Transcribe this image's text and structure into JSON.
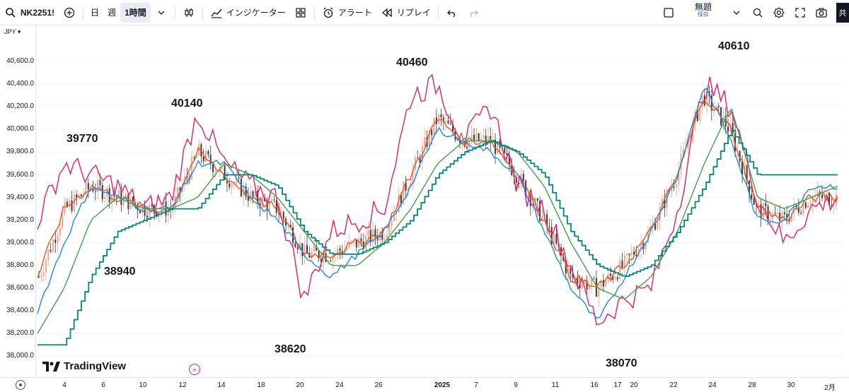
{
  "toolbar": {
    "symbol": "NK2251!",
    "interval_day": "日",
    "interval_week": "週",
    "interval_hour": "1時間",
    "indicators_label": "インジケーター",
    "alert_label": "アラート",
    "replay_label": "リプレイ",
    "layout_name": "無題",
    "layout_status": "保存",
    "corner_label": "共"
  },
  "currency": "JPY",
  "price_axis": [
    "40,600.0",
    "40,400.0",
    "40,200.0",
    "40,000.0",
    "39,800.0",
    "39,600.0",
    "39,400.0",
    "39,200.0",
    "39,000.0",
    "38,800.0",
    "38,600.0",
    "38,400.0",
    "38,200.0",
    "38,000.0"
  ],
  "time_axis": [
    "4",
    "6",
    "10",
    "12",
    "14",
    "18",
    "20",
    "24",
    "26",
    "2025",
    "7",
    "9",
    "11",
    "16",
    "17",
    "20",
    "22",
    "24",
    "28",
    "30",
    "2月"
  ],
  "annotations": [
    "40140",
    "39770",
    "38940",
    "38620",
    "40460",
    "38070",
    "40610"
  ],
  "watermark": "TradingView",
  "chart_data": {
    "type": "line",
    "xlabel": "",
    "ylabel": "",
    "ylim": [
      37950,
      40700
    ],
    "grid": true,
    "series": [
      {
        "color": "#e91e63",
        "values": [
          39200,
          39700,
          39600,
          39500,
          39300,
          39400,
          40150,
          39700,
          39500,
          39400,
          38500,
          39100,
          39200,
          39300,
          40300,
          40400,
          39900,
          40200,
          39500,
          39300,
          38800,
          38300,
          38500,
          38600,
          39300,
          40400,
          40200,
          39400,
          39000,
          39300,
          39400
        ]
      },
      {
        "color": "#f4511e",
        "values": [
          38700,
          39300,
          39500,
          39400,
          39300,
          39300,
          39800,
          39600,
          39400,
          39300,
          38900,
          38900,
          39000,
          39100,
          39600,
          40100,
          39900,
          39900,
          39600,
          39200,
          38700,
          38600,
          38800,
          39100,
          39600,
          40300,
          40000,
          39300,
          39200,
          39400,
          39400
        ]
      },
      {
        "color": "#1e88e5",
        "values": [
          38400,
          39000,
          39500,
          39400,
          39300,
          39300,
          39700,
          39700,
          39400,
          39200,
          38900,
          38700,
          38900,
          39100,
          39500,
          40000,
          39900,
          39800,
          39600,
          39100,
          38600,
          38300,
          38700,
          39100,
          39600,
          40400,
          39900,
          39200,
          39200,
          39500,
          39500
        ]
      },
      {
        "color": "#43a047",
        "values": [
          38200,
          38600,
          39200,
          39400,
          39300,
          39300,
          39400,
          39700,
          39600,
          39400,
          39100,
          38800,
          38800,
          39000,
          39300,
          39700,
          39900,
          39900,
          39800,
          39500,
          39000,
          38600,
          38500,
          38700,
          39100,
          39700,
          40200,
          39400,
          39300,
          39400,
          39500
        ]
      },
      {
        "color": "#00897b",
        "values": [
          38100,
          38100,
          38700,
          39100,
          39200,
          39300,
          39300,
          39600,
          39600,
          39500,
          39100,
          38900,
          38900,
          39000,
          39200,
          39600,
          39800,
          39900,
          39800,
          39600,
          39100,
          38800,
          38700,
          38800,
          39100,
          39500,
          40000,
          39600,
          39600,
          39600,
          39600
        ]
      }
    ]
  }
}
